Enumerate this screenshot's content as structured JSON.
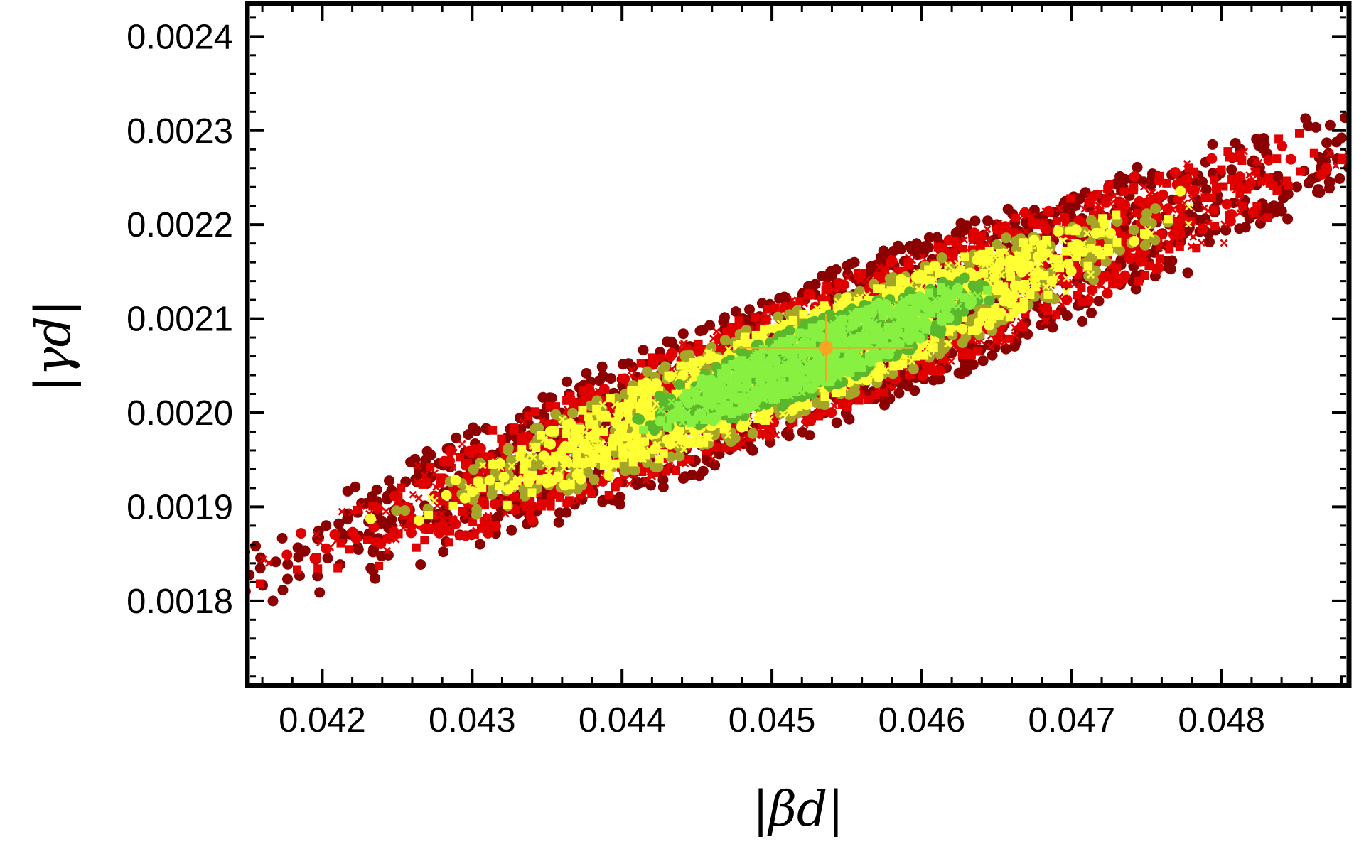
{
  "chart_data": {
    "type": "scatter",
    "title": "",
    "xlabel": "|βd|",
    "ylabel": "|γd|",
    "xlim": [
      0.0415,
      0.04885
    ],
    "ylim": [
      0.00171,
      0.002435
    ],
    "x_ticks": [
      "0.042",
      "0.043",
      "0.044",
      "0.045",
      "0.046",
      "0.047",
      "0.048"
    ],
    "x_tick_values": [
      0.042,
      0.043,
      0.044,
      0.045,
      0.046,
      0.047,
      0.048
    ],
    "y_ticks": [
      "0.0018",
      "0.0019",
      "0.0020",
      "0.0021",
      "0.0022",
      "0.0023",
      "0.0024"
    ],
    "y_tick_values": [
      0.0018,
      0.0019,
      0.002,
      0.0021,
      0.0022,
      0.0023,
      0.0024
    ],
    "grid": false,
    "legend": "none",
    "regions": [
      {
        "color": "#8b0000",
        "marker": "circle",
        "center": [
          0.04535,
          0.002065
        ],
        "halfwidth": 0.00345,
        "halfheight": 8.3e-05
      },
      {
        "color": "#e00000",
        "marker": "mixed",
        "center": [
          0.04535,
          0.002065
        ],
        "halfwidth": 0.00325,
        "halfheight": 7e-05
      },
      {
        "color": "#a5a528",
        "marker": "circle",
        "center": [
          0.0452,
          0.002055
        ],
        "halfwidth": 0.00225,
        "halfheight": 5.8e-05
      },
      {
        "color": "#ffff33",
        "marker": "mixed",
        "center": [
          0.0452,
          0.002055
        ],
        "halfwidth": 0.00215,
        "halfheight": 5e-05
      },
      {
        "color": "#5bb82c",
        "marker": "circle",
        "center": [
          0.0453,
          0.00206
        ],
        "halfwidth": 0.0011,
        "halfheight": 4e-05
      },
      {
        "color": "#88f040",
        "marker": "mixed",
        "center": [
          0.0453,
          0.00206
        ],
        "halfwidth": 0.001,
        "halfheight": 3.3e-05
      }
    ],
    "best_fit": {
      "x": 0.04536,
      "y": 0.002069,
      "x_err": 0.00058,
      "y_err": 3.6e-05,
      "color": "#f5a623"
    }
  }
}
